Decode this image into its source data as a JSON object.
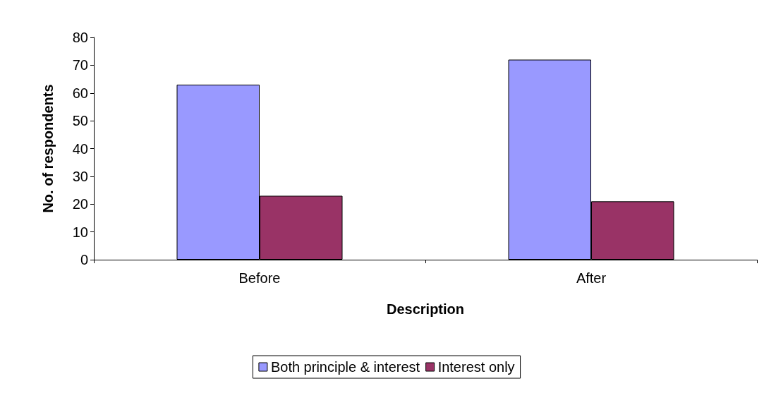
{
  "chart_data": {
    "type": "bar",
    "xlabel": "Description",
    "ylabel": "No. of respondents",
    "categories": [
      "Before",
      "After"
    ],
    "series": [
      {
        "name": "Both principle & interest",
        "color": "#9999ff",
        "values": [
          63,
          72
        ]
      },
      {
        "name": "Interest only",
        "color": "#993366",
        "values": [
          23,
          21
        ]
      }
    ],
    "ylim": [
      0,
      80
    ],
    "yticks": [
      0,
      10,
      20,
      30,
      40,
      50,
      60,
      70,
      80
    ],
    "grid": false,
    "legend": "bottom"
  }
}
